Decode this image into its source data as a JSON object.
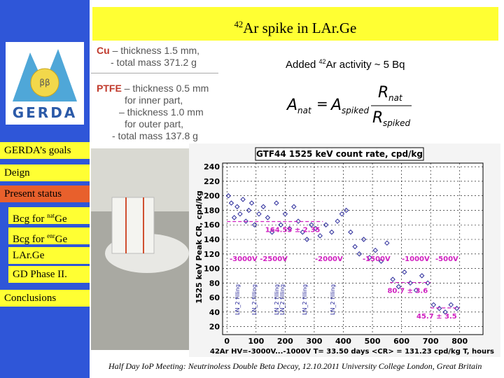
{
  "title": {
    "sup": "42",
    "text": "Ar spike in LAr.Ge"
  },
  "logo": {
    "symbol": "ββ",
    "label": "GERDA"
  },
  "nav": [
    {
      "text": "GERDA’s goals"
    },
    {
      "text": "Deign"
    },
    {
      "text": "Present status"
    },
    {
      "text": "Bcg for ",
      "sup": "nat",
      "after": "Ge"
    },
    {
      "text": "Bcg for ",
      "sup": "enr",
      "after": "Ge"
    },
    {
      "text": "LAr.Ge"
    },
    {
      "text": "GD Phase II."
    },
    {
      "text": "Conclusions"
    }
  ],
  "materials": {
    "cu": {
      "name": "Cu",
      "lines": [
        "– thickness 1.5 mm,",
        "- total mass 371.2 g"
      ]
    },
    "ptfe": {
      "name": "PTFE",
      "lines": [
        "– thickness 0.5 mm",
        "for inner part,",
        "– thickness 1.0 mm",
        "for outer part,",
        "- total mass 137.8 g"
      ]
    }
  },
  "activity": {
    "before": "Added ",
    "sup": "42",
    "after": "Ar activity ~ 5 Bq"
  },
  "formula": {
    "lhs": "A",
    "lhs_sub": "nat",
    "eq": "=",
    "a": "A",
    "a_sub": "spiked",
    "num": "R",
    "num_sub": "nat",
    "den": "R",
    "den_sub": "spiked"
  },
  "plot": {
    "type": "scatter",
    "title": "GTF44 1525 keV count rate, cpd/kg",
    "y_label": "1525 keV Peak CR, cpd/kg",
    "x_label": "42Ar HV=-3000V...-1000V T= 33.50 days <CR> = 131.23 cpd/kg T, hours",
    "xlim": [
      -15,
      880
    ],
    "ylim": [
      9,
      245
    ],
    "xticks": [
      0,
      100,
      200,
      300,
      400,
      500,
      600,
      700,
      800
    ],
    "yticks": [
      20,
      40,
      60,
      80,
      100,
      120,
      140,
      160,
      180,
      200,
      220,
      240
    ],
    "color": "#2a2a9a",
    "x": [
      5,
      15,
      25,
      35,
      45,
      55,
      65,
      75,
      85,
      95,
      110,
      125,
      140,
      155,
      170,
      185,
      200,
      215,
      230,
      245,
      260,
      275,
      290,
      305,
      320,
      340,
      360,
      380,
      395,
      410,
      425,
      440,
      455,
      470,
      490,
      510,
      530,
      550,
      570,
      590,
      610,
      630,
      650,
      670,
      690,
      710,
      730,
      750,
      770,
      790
    ],
    "values": [
      200,
      190,
      170,
      185,
      175,
      195,
      165,
      180,
      190,
      160,
      175,
      185,
      170,
      150,
      190,
      160,
      175,
      155,
      185,
      165,
      150,
      140,
      160,
      155,
      145,
      160,
      150,
      165,
      175,
      180,
      150,
      130,
      120,
      140,
      115,
      125,
      110,
      135,
      85,
      75,
      95,
      80,
      70,
      90,
      80,
      50,
      45,
      40,
      50,
      45
    ],
    "fits": [
      {
        "value": 164.55,
        "label": "164.55 ± 2.35",
        "xrange": [
          0,
          330
        ]
      },
      {
        "value": 80.7,
        "label": "80.7 ± 3.6",
        "xrange": [
          560,
          700
        ]
      },
      {
        "value": 45.7,
        "label": "45.7 ± 3.5",
        "xrange": [
          700,
          800
        ]
      }
    ],
    "hv_labels": [
      "-3000V -2500V",
      "-2000V",
      "-1500V",
      "-1000V",
      "-500V"
    ],
    "fill_labels": [
      "LN_2 filling",
      "LN_2 filling",
      "LN_2 filling",
      "LN_2 filling",
      "LN_2 filling",
      "LN_2 filling"
    ]
  },
  "footer": "Half Day IoP Meeting: Neutrinoless Double Beta Decay, 12.10.2011 University College London, Great Britain"
}
